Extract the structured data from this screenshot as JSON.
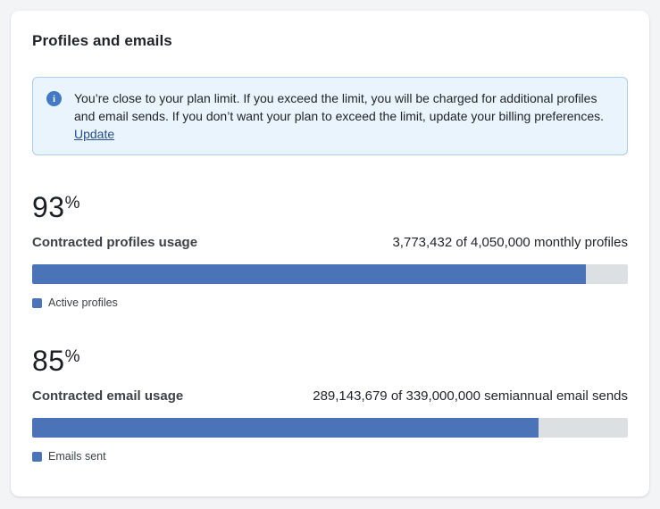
{
  "card": {
    "title": "Profiles and emails"
  },
  "alert": {
    "icon": "info-circle",
    "message": "You’re close to your plan limit. If you exceed the limit, you will be charged for additional profiles and email sends. If you don’t want your plan to exceed the limit, update your billing preferences. ",
    "link_label": "Update",
    "icon_glyph": "i"
  },
  "sections": [
    {
      "percent_value": "93",
      "percent_symbol": "%",
      "label": "Contracted profiles usage",
      "usage_text": "3,773,432 of 4,050,000 monthly profiles",
      "used": 3773432,
      "limit": 4050000,
      "fill_percent": 93,
      "legend_label": "Active profiles"
    },
    {
      "percent_value": "85",
      "percent_symbol": "%",
      "label": "Contracted email usage",
      "usage_text": "289,143,679 of 339,000,000 semiannual email sends",
      "used": 289143679,
      "limit": 339000000,
      "fill_percent": 85,
      "legend_label": "Emails sent"
    }
  ],
  "colors": {
    "bar_fill": "#4a73b8",
    "bar_track": "#dde0e3",
    "alert_background": "#e9f4fc",
    "alert_border": "#abcdec",
    "info_icon": "#4379c4",
    "link": "#254e8f"
  }
}
